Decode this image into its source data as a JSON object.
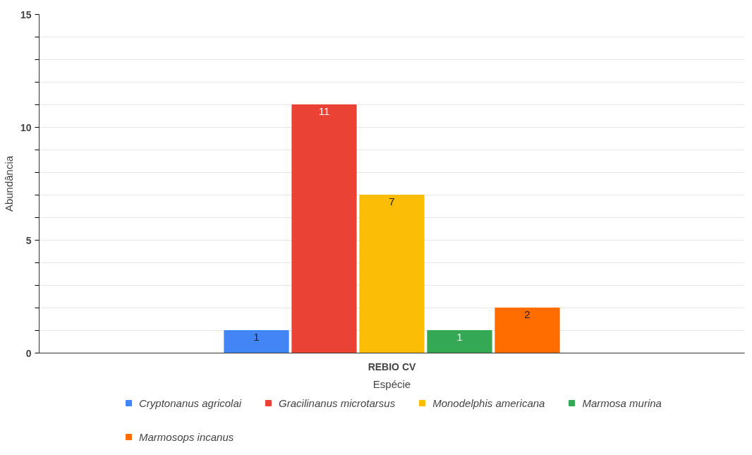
{
  "chart_data": {
    "type": "bar",
    "xlabel": "Espécie",
    "ylabel": "Abundância",
    "categories": [
      "REBIO CV"
    ],
    "series": [
      {
        "name": "Cryptonanus agricolai",
        "color": "#4285f4",
        "values": [
          1
        ]
      },
      {
        "name": "Gracilinanus microtarsus",
        "color": "#ea4335",
        "values": [
          11
        ]
      },
      {
        "name": "Monodelphis americana",
        "color": "#fbbc04",
        "values": [
          7
        ]
      },
      {
        "name": "Marmosa murina",
        "color": "#34a853",
        "values": [
          1
        ]
      },
      {
        "name": "Marmosops incanus",
        "color": "#ff6d01",
        "values": [
          2
        ]
      }
    ],
    "ylim": [
      0,
      15
    ],
    "yticks": [
      0,
      {
        "value": 1,
        "label": null
      },
      {
        "value": 2,
        "label": null
      },
      {
        "value": 3,
        "label": null
      },
      {
        "value": 4,
        "label": null
      },
      5,
      {
        "value": 6,
        "label": null
      },
      {
        "value": 7,
        "label": null
      },
      {
        "value": 8,
        "label": null
      },
      {
        "value": 9,
        "label": null
      },
      10,
      {
        "value": 11,
        "label": null
      },
      {
        "value": 12,
        "label": null
      },
      {
        "value": 13,
        "label": null
      },
      {
        "value": 14,
        "label": null
      },
      15
    ],
    "grid": "y",
    "legend": "bottom",
    "data_labels": true
  }
}
